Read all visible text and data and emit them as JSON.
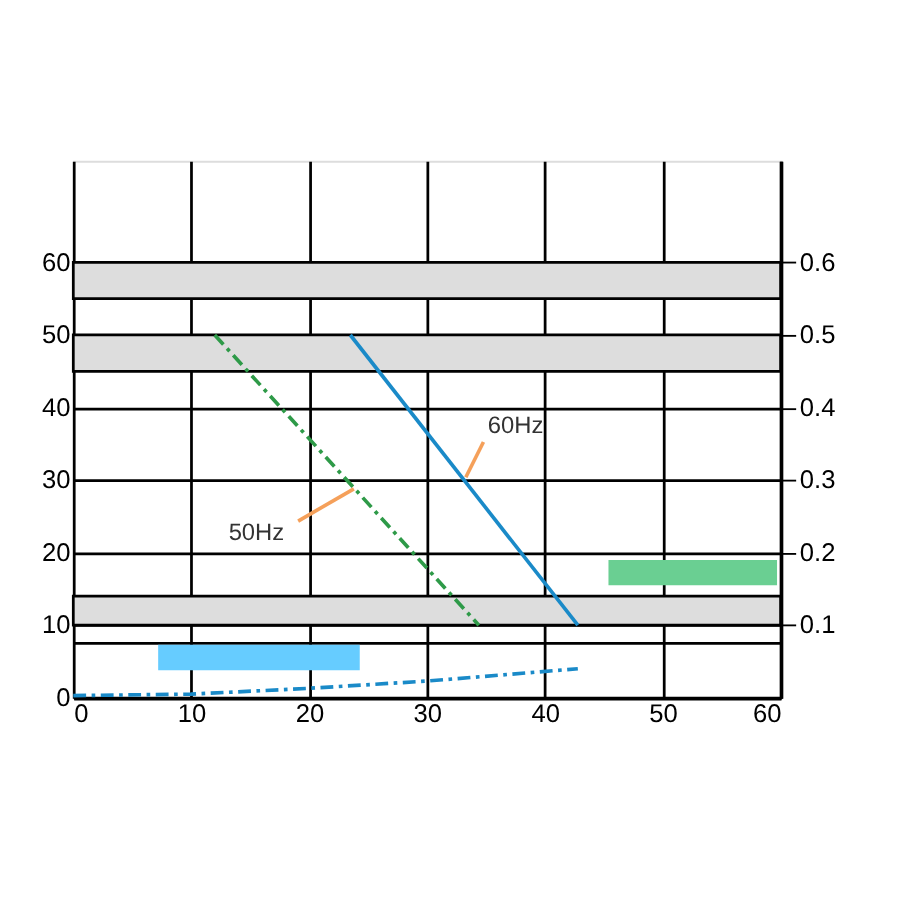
{
  "chart_data": {
    "type": "line",
    "xlim": [
      0,
      60
    ],
    "xticks": [
      0,
      10,
      20,
      30,
      40,
      50,
      60
    ],
    "ylim": [
      0,
      74
    ],
    "yticks": [
      0,
      10,
      20,
      30,
      40,
      50,
      60
    ],
    "y2lim": [
      0,
      0.74
    ],
    "y2ticks": [
      0.1,
      0.2,
      0.3,
      0.4,
      0.5,
      0.6
    ],
    "grid": true,
    "legend": false,
    "marker": "none",
    "series": [
      {
        "x": [
          12,
          34.4
        ],
        "values": [
          50,
          10
        ],
        "color": "#2e9a48",
        "line_style": "dashed"
      },
      {
        "x": [
          23.5,
          42.8
        ],
        "values": [
          50,
          10
        ],
        "color": "#1a8ac8",
        "line_style": "solid"
      },
      {
        "x": [
          0,
          10,
          20,
          30,
          42.8
        ],
        "values": [
          0.003,
          0.005,
          0.013,
          0.023,
          0.04
        ],
        "color": "#1a8ac8",
        "line_style": "dashed",
        "axis": "y2"
      },
      {
        "type": "area",
        "x": [
          7.2,
          24.3
        ],
        "values": [
          null,
          null
        ],
        "lower": [
          3.8,
          3.8
        ],
        "upper": [
          7.3,
          7.3
        ],
        "color": "#66ccff"
      },
      {
        "type": "area",
        "x": [
          45.4,
          59.7
        ],
        "values": [
          null,
          null
        ],
        "lower": [
          15.5,
          15.5
        ],
        "upper": [
          19,
          19
        ],
        "color": "#6acf92"
      }
    ],
    "bands": [
      {
        "axis": "y",
        "from": 55,
        "to": 60,
        "color": "#dddddd"
      },
      {
        "axis": "y",
        "from": 45,
        "to": 50,
        "color": "#dddddd"
      },
      {
        "axis": "y",
        "from": 10,
        "to": 14,
        "color": "#dddddd"
      }
    ],
    "ref_lines": [
      {
        "axis": "y",
        "value": 7.5
      }
    ],
    "annotations": [
      {
        "text": "60Hz",
        "x": 33.3,
        "y": 30.4
      },
      {
        "text": "50Hz",
        "x": 23.8,
        "y": 28.8
      }
    ]
  }
}
